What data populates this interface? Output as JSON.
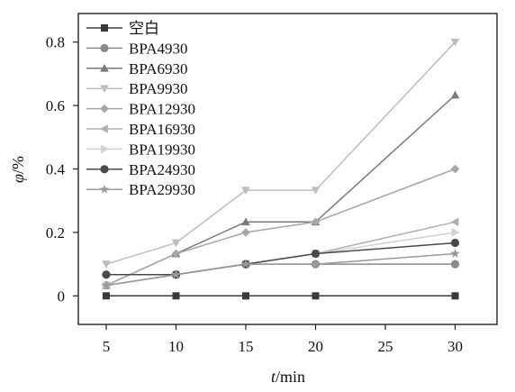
{
  "chart_data": {
    "type": "line",
    "xlabel": {
      "var": "t",
      "unit": "/min"
    },
    "ylabel": {
      "var": "φ",
      "unit": "/%"
    },
    "xlim": [
      3,
      33
    ],
    "ylim": [
      -0.09,
      0.89
    ],
    "xticks": [
      5,
      10,
      15,
      20,
      25,
      30
    ],
    "yticks": [
      0,
      0.2,
      0.4,
      0.6,
      0.8
    ],
    "xtick_labels": [
      "5",
      "10",
      "15",
      "20",
      "25",
      "30"
    ],
    "ytick_labels": [
      "0",
      "0.2",
      "0.4",
      "0.6",
      "0.8"
    ],
    "grid": false,
    "legend_position": "top-left",
    "x": [
      5,
      10,
      15,
      20,
      30
    ],
    "series": [
      {
        "name": "空白",
        "marker": "square",
        "color": "#3a3a3a",
        "values": [
          0,
          0,
          0,
          0,
          0
        ]
      },
      {
        "name": "BPA4930",
        "marker": "circle",
        "color": "#8a8a8a",
        "values": [
          0.033,
          0.067,
          0.1,
          0.1,
          0.1
        ]
      },
      {
        "name": "BPA6930",
        "marker": "triangle-up",
        "color": "#7a7a7a",
        "values": [
          0.033,
          0.133,
          0.233,
          0.233,
          0.633
        ]
      },
      {
        "name": "BPA9930",
        "marker": "triangle-down",
        "color": "#bdbdbd",
        "values": [
          0.1,
          0.167,
          0.333,
          0.333,
          0.8
        ]
      },
      {
        "name": "BPA12930",
        "marker": "diamond",
        "color": "#a6a6a6",
        "values": [
          0.033,
          0.133,
          0.2,
          0.233,
          0.4
        ]
      },
      {
        "name": "BPA16930",
        "marker": "triangle-left",
        "color": "#b0b0b0",
        "values": [
          0.033,
          0.067,
          0.1,
          0.133,
          0.233
        ]
      },
      {
        "name": "BPA19930",
        "marker": "triangle-right",
        "color": "#d0d0d0",
        "values": [
          0.033,
          0.067,
          0.1,
          0.133,
          0.2
        ]
      },
      {
        "name": "BPA24930",
        "marker": "circle",
        "color": "#4a4a4a",
        "values": [
          0.067,
          0.067,
          0.1,
          0.133,
          0.167
        ]
      },
      {
        "name": "BPA29930",
        "marker": "star",
        "color": "#9a9a9a",
        "values": [
          0.033,
          0.067,
          0.1,
          0.1,
          0.133
        ]
      }
    ]
  }
}
